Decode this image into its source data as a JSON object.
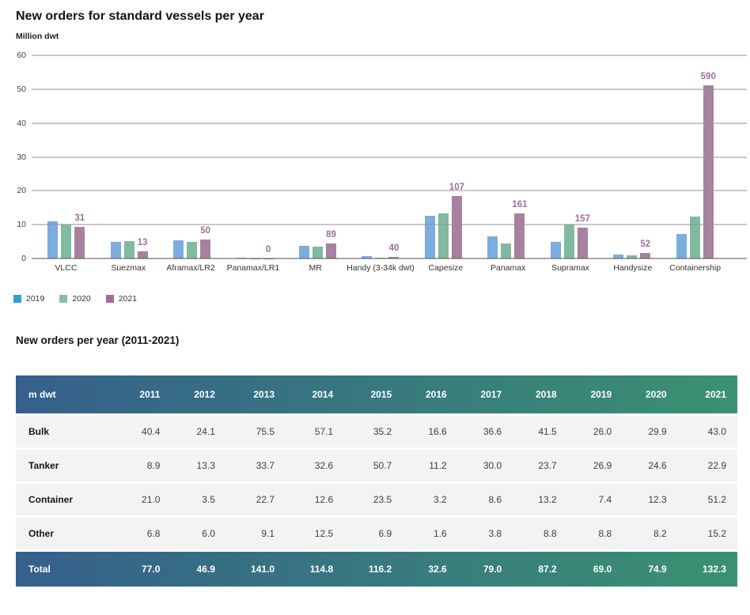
{
  "chart": {
    "title": "New orders for standard vessels per year",
    "y_unit": "Million dwt"
  },
  "table_section": {
    "title": "New orders per year (2011-2021)"
  },
  "colors": {
    "bar_2019": "#7badde",
    "bar_2020": "#82b9a1",
    "bar_2021": "#a7819f",
    "marker_2019": "#2d9fd8",
    "marker_2020": "#8abd9e",
    "marker_2021": "#a5699a",
    "bar_label_text": "#9c7095",
    "table_gradient_left": "#35608c",
    "table_gradient_right": "#3a9171",
    "row_bg": "#f1f3f5"
  },
  "chart_data": [
    {
      "type": "bar",
      "title": "New orders for standard vessels per year",
      "ylabel": "Million dwt",
      "ylim": [
        0,
        60
      ],
      "yticks": [
        0,
        10,
        20,
        30,
        40,
        50,
        60
      ],
      "grid": true,
      "legend_position": "bottom-left",
      "categories": [
        "VLCC",
        "Suezmax",
        "Aframax/LR2",
        "Panamax/LR1",
        "MR",
        "Handy (3-34k dwt)",
        "Capesize",
        "Panamax",
        "Supramax",
        "Handysize",
        "Containership"
      ],
      "series": [
        {
          "name": "2019",
          "values": [
            11.0,
            4.8,
            5.4,
            0.2,
            3.7,
            0.8,
            12.5,
            6.5,
            4.8,
            1.2,
            7.2
          ]
        },
        {
          "name": "2020",
          "values": [
            10.0,
            5.2,
            4.8,
            0.1,
            3.4,
            0.3,
            13.2,
            4.4,
            10.0,
            1.0,
            12.3
          ]
        },
        {
          "name": "2021",
          "values": [
            9.3,
            2.0,
            5.7,
            0.1,
            4.4,
            0.4,
            18.5,
            13.2,
            9.0,
            1.7,
            51.2
          ]
        }
      ],
      "bar_labels": {
        "above_series": "2021",
        "values": [
          "31",
          "13",
          "50",
          "0",
          "89",
          "40",
          "107",
          "161",
          "157",
          "52",
          "590"
        ]
      }
    },
    {
      "type": "table",
      "title": "New orders per year (2011-2021)",
      "header": [
        "m dwt",
        "2011",
        "2012",
        "2013",
        "2014",
        "2015",
        "2016",
        "2017",
        "2018",
        "2019",
        "2020",
        "2021"
      ],
      "rows": [
        {
          "label": "Bulk",
          "values": [
            "40.4",
            "24.1",
            "75.5",
            "57.1",
            "35.2",
            "16.6",
            "36.6",
            "41.5",
            "26.0",
            "29.9",
            "43.0"
          ]
        },
        {
          "label": "Tanker",
          "values": [
            "8.9",
            "13.3",
            "33.7",
            "32.6",
            "50.7",
            "11.2",
            "30.0",
            "23.7",
            "26.9",
            "24.6",
            "22.9"
          ]
        },
        {
          "label": "Container",
          "values": [
            "21.0",
            "3.5",
            "22.7",
            "12.6",
            "23.5",
            "3.2",
            "8.6",
            "13.2",
            "7.4",
            "12.3",
            "51.2"
          ]
        },
        {
          "label": "Other",
          "values": [
            "6.8",
            "6.0",
            "9.1",
            "12.5",
            "6.9",
            "1.6",
            "3.8",
            "8.8",
            "8.8",
            "8.2",
            "15.2"
          ]
        }
      ],
      "total": {
        "label": "Total",
        "values": [
          "77.0",
          "46.9",
          "141.0",
          "114.8",
          "116.2",
          "32.6",
          "79.0",
          "87.2",
          "69.0",
          "74.9",
          "132.3"
        ]
      }
    }
  ]
}
